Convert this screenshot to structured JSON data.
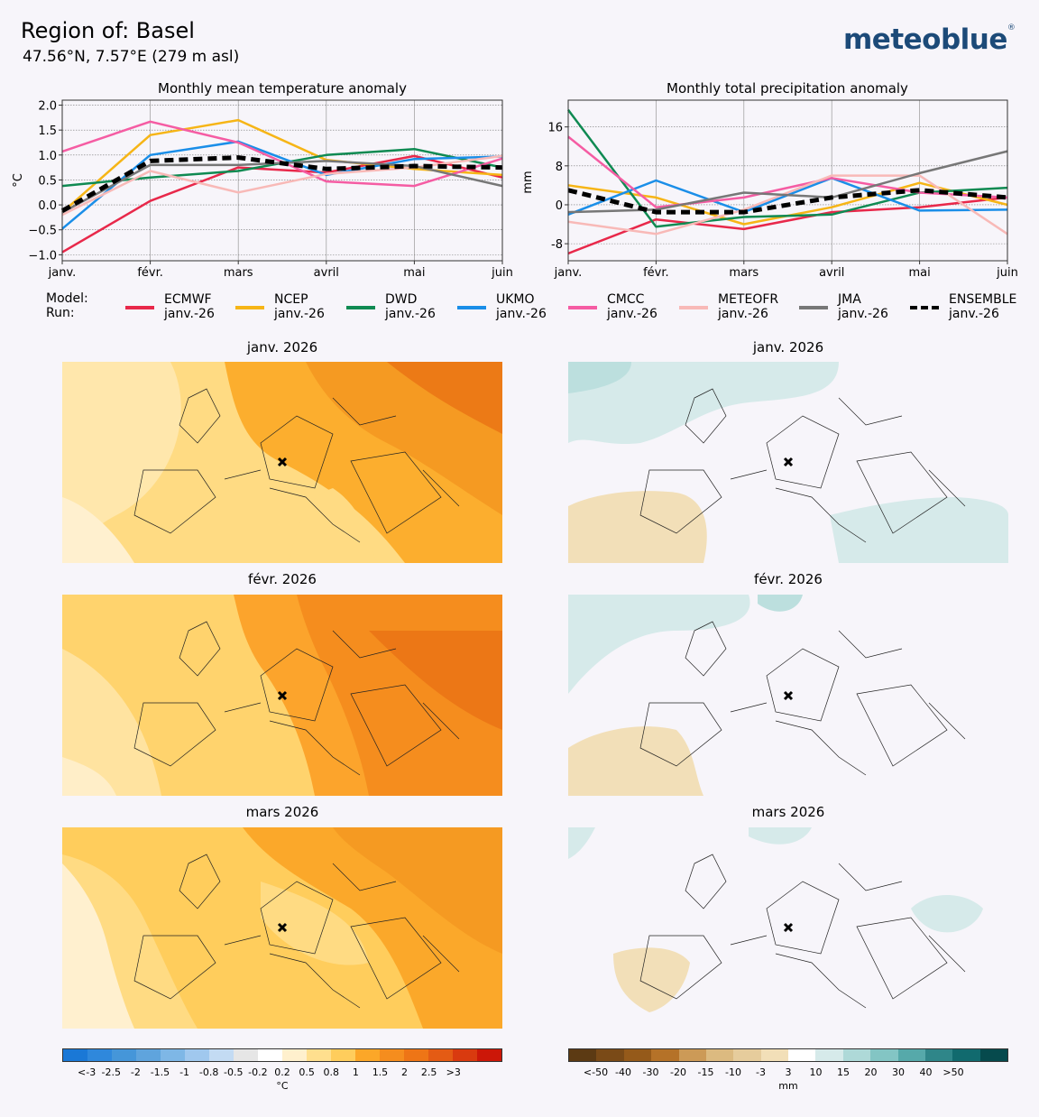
{
  "header": {
    "title": "Region of: Basel",
    "coords": "47.56°N, 7.57°E (279 m asl)",
    "logo": "meteoblue",
    "logo_mark": "®"
  },
  "legend": {
    "model_label": "Model:",
    "run_label": "Run:",
    "entries": [
      {
        "model": "ECMWF",
        "run": "janv.-26",
        "color": "#e8284a"
      },
      {
        "model": "NCEP",
        "run": "janv.-26",
        "color": "#f6b516"
      },
      {
        "model": "DWD",
        "run": "janv.-26",
        "color": "#0f8a52"
      },
      {
        "model": "UKMO",
        "run": "janv.-26",
        "color": "#1a8ee8"
      },
      {
        "model": "CMCC",
        "run": "janv.-26",
        "color": "#f55ca3"
      },
      {
        "model": "METEOFR",
        "run": "janv.-26",
        "color": "#f8b9b7"
      },
      {
        "model": "JMA",
        "run": "janv.-26",
        "color": "#777777"
      },
      {
        "model": "ENSEMBLE",
        "run": "janv.-26",
        "color": "#000000"
      }
    ]
  },
  "chart_data": [
    {
      "type": "line",
      "title": "Monthly mean temperature anomaly",
      "xlabel": "",
      "ylabel": "°C",
      "categories": [
        "janv.",
        "févr.",
        "mars",
        "avril",
        "mai",
        "juin"
      ],
      "ylim": [
        -1.12,
        2.1
      ],
      "yticks": [
        2.0,
        1.5,
        1.0,
        0.5,
        0.0,
        -0.5,
        -1.0
      ],
      "ytick_labels": [
        "2.0",
        "1.5",
        "1.0",
        "0.5",
        "0.0",
        "−0.5",
        "−1.0"
      ],
      "series": [
        {
          "name": "ECMWF",
          "color": "#e8284a",
          "values": [
            -0.95,
            0.08,
            0.75,
            0.65,
            0.98,
            0.55
          ]
        },
        {
          "name": "NCEP",
          "color": "#f6b516",
          "values": [
            -0.15,
            1.4,
            1.7,
            0.9,
            0.72,
            0.6
          ]
        },
        {
          "name": "DWD",
          "color": "#0f8a52",
          "values": [
            0.38,
            0.55,
            0.68,
            1.0,
            1.12,
            0.75
          ]
        },
        {
          "name": "UKMO",
          "color": "#1a8ee8",
          "values": [
            -0.48,
            1.0,
            1.27,
            0.6,
            0.92,
            0.97
          ]
        },
        {
          "name": "CMCC",
          "color": "#f55ca3",
          "values": [
            1.07,
            1.67,
            1.25,
            0.47,
            0.38,
            0.93
          ]
        },
        {
          "name": "METEOFR",
          "color": "#f8b9b7",
          "values": [
            -0.2,
            0.68,
            0.25,
            0.62,
            0.75,
            0.98
          ]
        },
        {
          "name": "JMA",
          "color": "#777777",
          "values": [
            -0.15,
            0.8,
            0.8,
            0.88,
            0.78,
            0.38
          ]
        },
        {
          "name": "ENSEMBLE",
          "color": "#000000",
          "dashed": true,
          "values": [
            -0.12,
            0.88,
            0.95,
            0.72,
            0.78,
            0.75
          ]
        }
      ]
    },
    {
      "type": "line",
      "title": "Monthly total precipitation anomaly",
      "xlabel": "",
      "ylabel": "mm",
      "categories": [
        "janv.",
        "févr.",
        "mars",
        "avril",
        "mai",
        "juin"
      ],
      "ylim": [
        -11.5,
        21.5
      ],
      "yticks": [
        16,
        8,
        0,
        -8
      ],
      "ytick_labels": [
        "16",
        "8",
        "0",
        "-8"
      ],
      "series": [
        {
          "name": "ECMWF",
          "color": "#e8284a",
          "values": [
            -10,
            -3,
            -5,
            -1.5,
            -0.5,
            1.5
          ]
        },
        {
          "name": "NCEP",
          "color": "#f6b516",
          "values": [
            4,
            1.5,
            -4,
            -0.5,
            4.5,
            0
          ]
        },
        {
          "name": "DWD",
          "color": "#0f8a52",
          "values": [
            19.5,
            -4.5,
            -2.5,
            -2,
            2.5,
            3.5
          ]
        },
        {
          "name": "UKMO",
          "color": "#1a8ee8",
          "values": [
            -2,
            5,
            -1.5,
            5.5,
            -1.2,
            -1
          ]
        },
        {
          "name": "CMCC",
          "color": "#f55ca3",
          "values": [
            14,
            -0.5,
            1.5,
            5.5,
            2.5,
            1.5
          ]
        },
        {
          "name": "METEOFR",
          "color": "#f8b9b7",
          "values": [
            -3.5,
            -6,
            -1,
            6,
            6,
            -6
          ]
        },
        {
          "name": "JMA",
          "color": "#777777",
          "values": [
            -1.5,
            -1,
            2.5,
            1.5,
            6.5,
            11
          ]
        },
        {
          "name": "ENSEMBLE",
          "color": "#000000",
          "dashed": true,
          "values": [
            3,
            -1.5,
            -1.5,
            1.5,
            3,
            1.5
          ]
        }
      ]
    }
  ],
  "maps": {
    "left": [
      "janv. 2026",
      "févr. 2026",
      "mars 2026"
    ],
    "right": [
      "janv. 2026",
      "févr. 2026",
      "mars 2026"
    ]
  },
  "colorbars": {
    "temperature": {
      "colors": [
        "#1a78d6",
        "#2f88dc",
        "#4596d9",
        "#5fa4dd",
        "#7eb7e6",
        "#a0c8ee",
        "#c3dbf3",
        "#e6e6e6",
        "#ffffff",
        "#fff0cd",
        "#ffdf8e",
        "#ffcd5c",
        "#fca728",
        "#f58d1e",
        "#ee7516",
        "#e45b14",
        "#d93a0f",
        "#cc1708"
      ],
      "ticks": [
        "<-3",
        "-2.5",
        "-2",
        "-1.5",
        "-1",
        "-0.8",
        "-0.5",
        "-0.2",
        "0.2",
        "0.5",
        "0.8",
        "1",
        "1.5",
        "2",
        "2.5",
        ">3"
      ],
      "unit": "°C"
    },
    "precipitation": {
      "colors": [
        "#5c3a13",
        "#7a4a17",
        "#955a1a",
        "#b57228",
        "#cc9a57",
        "#dcba80",
        "#e6cc9c",
        "#f2dfb8",
        "#ffffff",
        "#d6eaea",
        "#aed9d8",
        "#83c5c4",
        "#56a9aa",
        "#2f8689",
        "#116a6e",
        "#064a4d"
      ],
      "ticks": [
        "<-50",
        "-40",
        "-30",
        "-20",
        "-15",
        "-10",
        "-3",
        "3",
        "10",
        "15",
        "20",
        "30",
        "40",
        ">50"
      ],
      "unit": "mm"
    }
  }
}
